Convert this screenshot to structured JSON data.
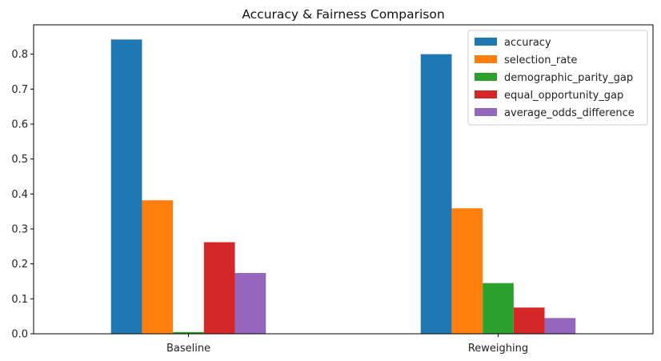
{
  "chart_data": {
    "type": "bar",
    "title": "Accuracy & Fairness Comparison",
    "xlabel": "",
    "ylabel": "",
    "categories": [
      "Baseline",
      "Reweighing"
    ],
    "series": [
      {
        "name": "accuracy",
        "color": "#1f77b4",
        "values": [
          0.842,
          0.8
        ]
      },
      {
        "name": "selection_rate",
        "color": "#ff7f0e",
        "values": [
          0.382,
          0.359
        ]
      },
      {
        "name": "demographic_parity_gap",
        "color": "#2ca02c",
        "values": [
          0.005,
          0.145
        ]
      },
      {
        "name": "equal_opportunity_gap",
        "color": "#d62728",
        "values": [
          0.262,
          0.075
        ]
      },
      {
        "name": "average_odds_difference",
        "color": "#9467bd",
        "values": [
          0.174,
          0.045
        ]
      }
    ],
    "ylim": [
      0,
      0.884
    ],
    "yticks": [
      "0.0",
      "0.1",
      "0.2",
      "0.3",
      "0.4",
      "0.5",
      "0.6",
      "0.7",
      "0.8"
    ],
    "grid": false,
    "legend_position": "top-right"
  }
}
